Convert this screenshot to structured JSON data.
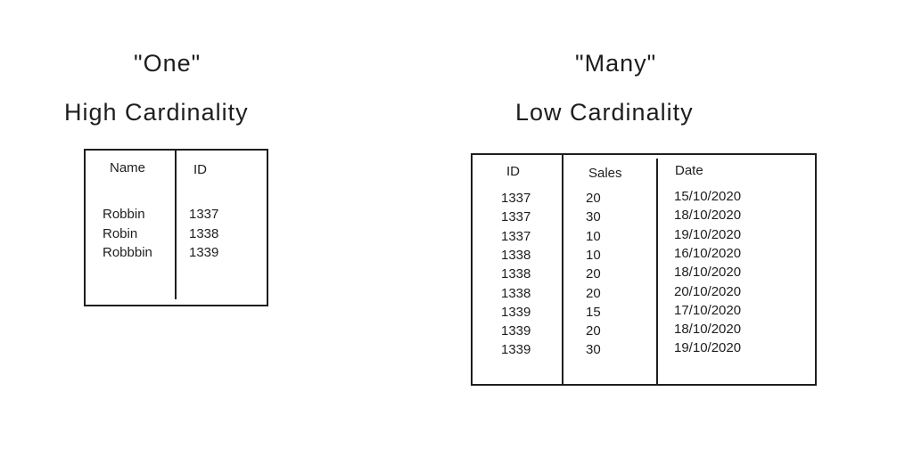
{
  "one_side": {
    "quote_label": "\"One\"",
    "cardinality_label": "High Cardinality",
    "table": {
      "headers": [
        "Name",
        "ID"
      ],
      "rows": [
        [
          "Robbin",
          "1337"
        ],
        [
          "Robin",
          "1338"
        ],
        [
          "Robbbin",
          "1339"
        ]
      ]
    }
  },
  "many_side": {
    "quote_label": "\"Many\"",
    "cardinality_label": "Low Cardinality",
    "table": {
      "headers": [
        "ID",
        "Sales",
        "Date"
      ],
      "rows": [
        [
          "1337",
          "20",
          "15/10/2020"
        ],
        [
          "1337",
          "30",
          "18/10/2020"
        ],
        [
          "1337",
          "10",
          "19/10/2020"
        ],
        [
          "1338",
          "10",
          "16/10/2020"
        ],
        [
          "1338",
          "20",
          "18/10/2020"
        ],
        [
          "1338",
          "20",
          "20/10/2020"
        ],
        [
          "1339",
          "15",
          "17/10/2020"
        ],
        [
          "1339",
          "20",
          "18/10/2020"
        ],
        [
          "1339",
          "30",
          "19/10/2020"
        ]
      ]
    }
  }
}
